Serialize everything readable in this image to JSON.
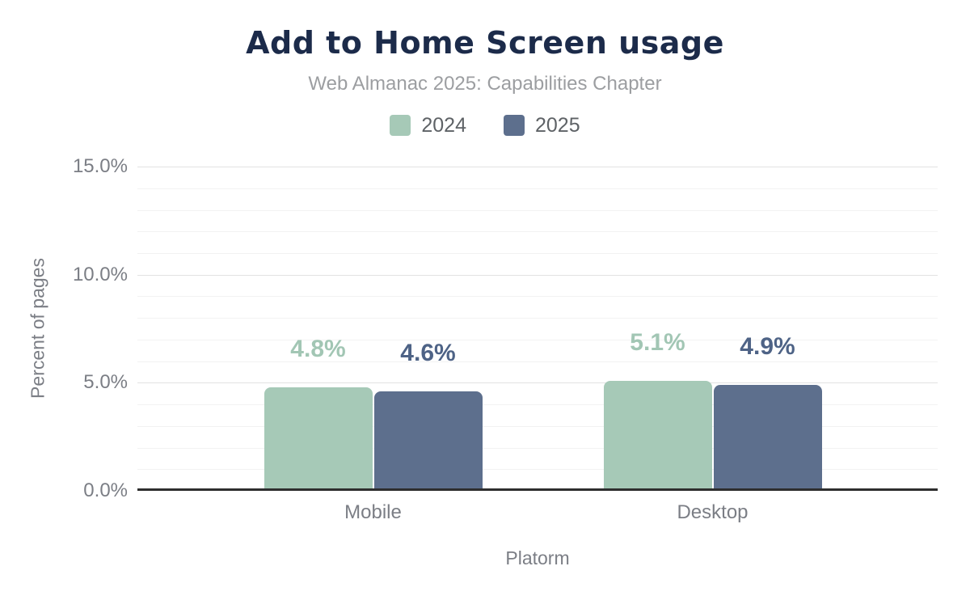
{
  "title": "Add to Home Screen usage",
  "subtitle": "Web Almanac 2025: Capabilities Chapter",
  "legend": [
    {
      "label": "2024",
      "color": "#a6c9b7"
    },
    {
      "label": "2025",
      "color": "#5d6f8d"
    }
  ],
  "chart_data": {
    "type": "bar",
    "categories": [
      "Mobile",
      "Desktop"
    ],
    "series": [
      {
        "name": "2024",
        "color": "#a6c9b7",
        "label_color": "#a2c6b4",
        "values": [
          4.8,
          5.1
        ],
        "labels": [
          "4.8%",
          "5.1%"
        ]
      },
      {
        "name": "2025",
        "color": "#5d6f8d",
        "label_color": "#4e6386",
        "values": [
          4.6,
          4.9
        ],
        "labels": [
          "4.6%",
          "4.9%"
        ]
      }
    ],
    "title": "Add to Home Screen usage",
    "subtitle": "Web Almanac 2025: Capabilities Chapter",
    "xlabel": "Platorm",
    "ylabel": "Percent of pages",
    "ylim": [
      0,
      15
    ],
    "yticks": [
      {
        "value": 0,
        "label": "0.0%"
      },
      {
        "value": 5,
        "label": "5.0%"
      },
      {
        "value": 10,
        "label": "10.0%"
      },
      {
        "value": 15,
        "label": "15.0%"
      }
    ],
    "minor_tick_step": 1,
    "grid": true,
    "legend_position": "top"
  },
  "colors": {
    "background": "#ffffff",
    "title": "#1c2b4a",
    "subtitle": "#9c9ea1",
    "legend_text": "#5e6266",
    "axis_text": "#7b7e85",
    "axis_line": "#2e2e2e",
    "grid_major": "#e2e2e2",
    "grid_minor": "#f2f2f2"
  }
}
